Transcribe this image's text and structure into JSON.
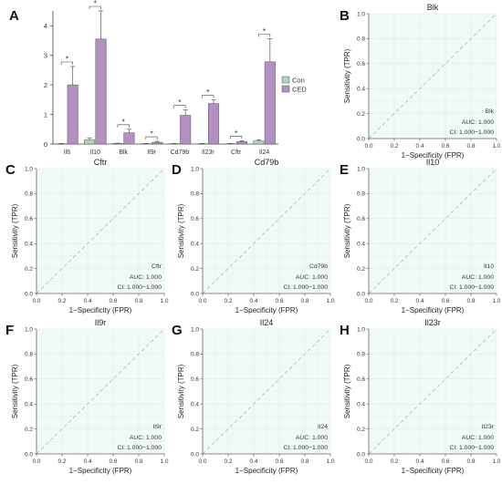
{
  "chart_data": [
    {
      "panel": "A",
      "type": "bar",
      "categories": [
        "Il6",
        "Il10",
        "Blk",
        "Il9r",
        "Cd79b",
        "Il23r",
        "Cftr",
        "Il24"
      ],
      "series": [
        {
          "name": "Con",
          "values": [
            0.01,
            0.14,
            0.02,
            0.01,
            0.01,
            0.01,
            0.01,
            0.1
          ],
          "errors": [
            0.01,
            0.06,
            0.01,
            0.01,
            0.01,
            0.01,
            0.01,
            0.04
          ],
          "color": "#aed4c2"
        },
        {
          "name": "CED",
          "values": [
            2.0,
            3.55,
            0.38,
            0.06,
            0.97,
            1.37,
            0.08,
            2.78
          ],
          "errors": [
            0.62,
            0.95,
            0.12,
            0.03,
            0.18,
            0.12,
            0.03,
            0.78
          ],
          "color": "#b48fc1"
        }
      ],
      "significance": [
        "*",
        "*",
        "*",
        "*",
        "*",
        "*",
        "*",
        "*"
      ],
      "yticks": [
        "0",
        "1",
        "2",
        "3",
        "4"
      ],
      "ylim": [
        0,
        4.5
      ],
      "legend_position": "right"
    },
    {
      "panel": "B",
      "type": "line",
      "title": "Blk",
      "gene": "Blk",
      "auc": "AUC: 1.000",
      "ci": "CI: 1.000−1.000"
    },
    {
      "panel": "C",
      "type": "line",
      "title": "Cftr",
      "gene": "Cftr",
      "auc": "AUC: 1.000",
      "ci": "CI: 1.000−1.000"
    },
    {
      "panel": "D",
      "type": "line",
      "title": "Cd79b",
      "gene": "Cd79b",
      "auc": "AUC: 1.000",
      "ci": "CI: 1.000−1.000"
    },
    {
      "panel": "E",
      "type": "line",
      "title": "Il10",
      "gene": "Il10",
      "auc": "AUC: 1.000",
      "ci": "CI: 1.000−1.000"
    },
    {
      "panel": "F",
      "type": "line",
      "title": "Il9r",
      "gene": "Il9r",
      "auc": "AUC: 1.000",
      "ci": "CI: 1.000−1.000"
    },
    {
      "panel": "G",
      "type": "line",
      "title": "Il24",
      "gene": "Il24",
      "auc": "AUC: 1.000",
      "ci": "CI: 1.000−1.000"
    },
    {
      "panel": "H",
      "type": "line",
      "title": "Il23r",
      "gene": "Il23r",
      "auc": "AUC: 1.000",
      "ci": "CI: 1.000−1.000"
    }
  ],
  "roc_axes": {
    "xlabel": "1−Specificity (FPR)",
    "ylabel": "Sensitivity (TPR)",
    "ticks": [
      "0.0",
      "0.2",
      "0.4",
      "0.6",
      "0.8",
      "1.0"
    ],
    "xlim": [
      0,
      1
    ],
    "ylim": [
      0,
      1
    ],
    "grid": true
  },
  "colors": {
    "roc_background": "#f2faf8",
    "roc_grid": "#d9eeea",
    "diagonal": "#9fbfb8",
    "axis": "#666666"
  }
}
